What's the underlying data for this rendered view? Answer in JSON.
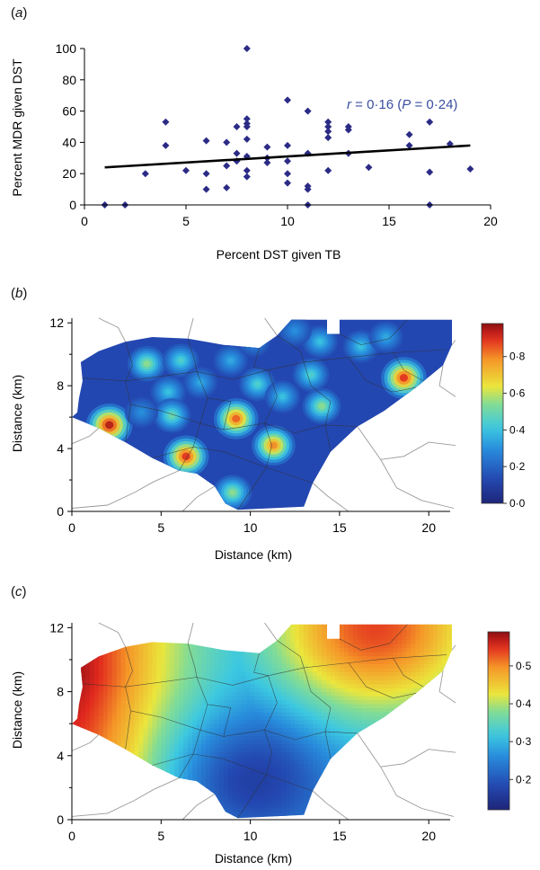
{
  "panels": {
    "a": {
      "open": "(",
      "letter": "a",
      "close": ")"
    },
    "b": {
      "open": "(",
      "letter": "b",
      "close": ")"
    },
    "c": {
      "open": "(",
      "letter": "c",
      "close": ")"
    }
  },
  "colors": {
    "scatter_point": "#2b2b86",
    "trend_line": "#000000",
    "annotation": "#3a4fa0",
    "border_lines": "#9a9a9a"
  },
  "chart_data": [
    {
      "type": "scatter",
      "xlabel": "Percent DST given TB",
      "ylabel": "Percent MDR given DST",
      "xlim": [
        0,
        20
      ],
      "ylim": [
        0,
        100
      ],
      "xticks": [
        "0",
        "5",
        "10",
        "15",
        "20"
      ],
      "yticks": [
        "0",
        "20",
        "40",
        "60",
        "80",
        "100"
      ],
      "grid": false,
      "annotation": {
        "r_symbol": "r",
        "r_text": " = 0·16 (",
        "p_symbol": "P",
        "p_text": " = 0·24)"
      },
      "trendline": {
        "x": [
          1,
          19
        ],
        "y": [
          24,
          38
        ]
      },
      "points": [
        {
          "x": 1,
          "y": 0
        },
        {
          "x": 2,
          "y": 0
        },
        {
          "x": 3,
          "y": 20
        },
        {
          "x": 4,
          "y": 53
        },
        {
          "x": 4,
          "y": 38
        },
        {
          "x": 5,
          "y": 22
        },
        {
          "x": 6,
          "y": 41
        },
        {
          "x": 6,
          "y": 20
        },
        {
          "x": 6,
          "y": 10
        },
        {
          "x": 7,
          "y": 40
        },
        {
          "x": 7,
          "y": 25
        },
        {
          "x": 7,
          "y": 11
        },
        {
          "x": 7.5,
          "y": 50
        },
        {
          "x": 7.5,
          "y": 33
        },
        {
          "x": 7.5,
          "y": 28
        },
        {
          "x": 8,
          "y": 100
        },
        {
          "x": 8,
          "y": 55
        },
        {
          "x": 8,
          "y": 52
        },
        {
          "x": 8,
          "y": 50
        },
        {
          "x": 8,
          "y": 42
        },
        {
          "x": 8,
          "y": 31
        },
        {
          "x": 8,
          "y": 22
        },
        {
          "x": 8,
          "y": 18
        },
        {
          "x": 9,
          "y": 37
        },
        {
          "x": 9,
          "y": 30
        },
        {
          "x": 9,
          "y": 27
        },
        {
          "x": 10,
          "y": 67
        },
        {
          "x": 10,
          "y": 38
        },
        {
          "x": 10,
          "y": 28
        },
        {
          "x": 10,
          "y": 20
        },
        {
          "x": 10,
          "y": 14
        },
        {
          "x": 11,
          "y": 60
        },
        {
          "x": 11,
          "y": 33
        },
        {
          "x": 11,
          "y": 12
        },
        {
          "x": 11,
          "y": 10
        },
        {
          "x": 11,
          "y": 0
        },
        {
          "x": 12,
          "y": 53
        },
        {
          "x": 12,
          "y": 50
        },
        {
          "x": 12,
          "y": 47
        },
        {
          "x": 12,
          "y": 43
        },
        {
          "x": 12,
          "y": 22
        },
        {
          "x": 13,
          "y": 50
        },
        {
          "x": 13,
          "y": 48
        },
        {
          "x": 13,
          "y": 33
        },
        {
          "x": 14,
          "y": 24
        },
        {
          "x": 16,
          "y": 45
        },
        {
          "x": 16,
          "y": 38
        },
        {
          "x": 17,
          "y": 53
        },
        {
          "x": 17,
          "y": 21
        },
        {
          "x": 17,
          "y": 0
        },
        {
          "x": 18,
          "y": 39
        },
        {
          "x": 19,
          "y": 23
        }
      ]
    },
    {
      "type": "heatmap",
      "xlabel": "Distance (km)",
      "ylabel": "Distance (km)",
      "xlim": [
        0,
        21.5
      ],
      "ylim": [
        0,
        12.3
      ],
      "xticks": [
        "0",
        "5",
        "10",
        "15",
        "20"
      ],
      "yticks": [
        "0",
        "4",
        "8",
        "12"
      ],
      "colorbar": {
        "min": 0,
        "max": 0.98,
        "ticks": [
          "0·0",
          "0·2",
          "0·4",
          "0·6",
          "0·8"
        ]
      },
      "background_value": 0.13,
      "hotspots": [
        {
          "x": 2.1,
          "y": 5.5,
          "value": 0.95
        },
        {
          "x": 6.4,
          "y": 3.5,
          "value": 0.9
        },
        {
          "x": 9.2,
          "y": 5.9,
          "value": 0.85
        },
        {
          "x": 11.3,
          "y": 4.2,
          "value": 0.8
        },
        {
          "x": 18.6,
          "y": 8.5,
          "value": 0.9
        },
        {
          "x": 9.0,
          "y": 1.2,
          "value": 0.55
        },
        {
          "x": 4.2,
          "y": 9.4,
          "value": 0.55
        },
        {
          "x": 6.1,
          "y": 9.6,
          "value": 0.45
        },
        {
          "x": 5.4,
          "y": 7.6,
          "value": 0.4
        },
        {
          "x": 5.6,
          "y": 6.1,
          "value": 0.5
        },
        {
          "x": 7.2,
          "y": 8.2,
          "value": 0.35
        },
        {
          "x": 8.9,
          "y": 9.6,
          "value": 0.35
        },
        {
          "x": 10.4,
          "y": 8.1,
          "value": 0.45
        },
        {
          "x": 11.8,
          "y": 7.3,
          "value": 0.4
        },
        {
          "x": 13.4,
          "y": 8.7,
          "value": 0.45
        },
        {
          "x": 14.0,
          "y": 6.7,
          "value": 0.55
        },
        {
          "x": 13.9,
          "y": 10.8,
          "value": 0.4
        },
        {
          "x": 12.5,
          "y": 11.5,
          "value": 0.3
        },
        {
          "x": 16.2,
          "y": 10.5,
          "value": 0.4
        },
        {
          "x": 17.6,
          "y": 11.1,
          "value": 0.35
        },
        {
          "x": 3.9,
          "y": 6.3,
          "value": 0.3
        },
        {
          "x": 10.2,
          "y": 10.8,
          "value": 0.3
        }
      ]
    },
    {
      "type": "heatmap",
      "xlabel": "Distance (km)",
      "ylabel": "Distance (km)",
      "xlim": [
        0,
        21.5
      ],
      "ylim": [
        0,
        12.3
      ],
      "xticks": [
        "0",
        "5",
        "10",
        "15",
        "20"
      ],
      "yticks": [
        "0",
        "4",
        "8",
        "12"
      ],
      "colorbar": {
        "min": 0.12,
        "max": 0.59,
        "ticks": [
          "0·2",
          "0·3",
          "0·4",
          "0·5"
        ]
      },
      "field": {
        "west_value": 0.55,
        "northeast_value": 0.47,
        "low_center": [
          9.5,
          2.5
        ],
        "low_value": 0.14
      }
    }
  ]
}
